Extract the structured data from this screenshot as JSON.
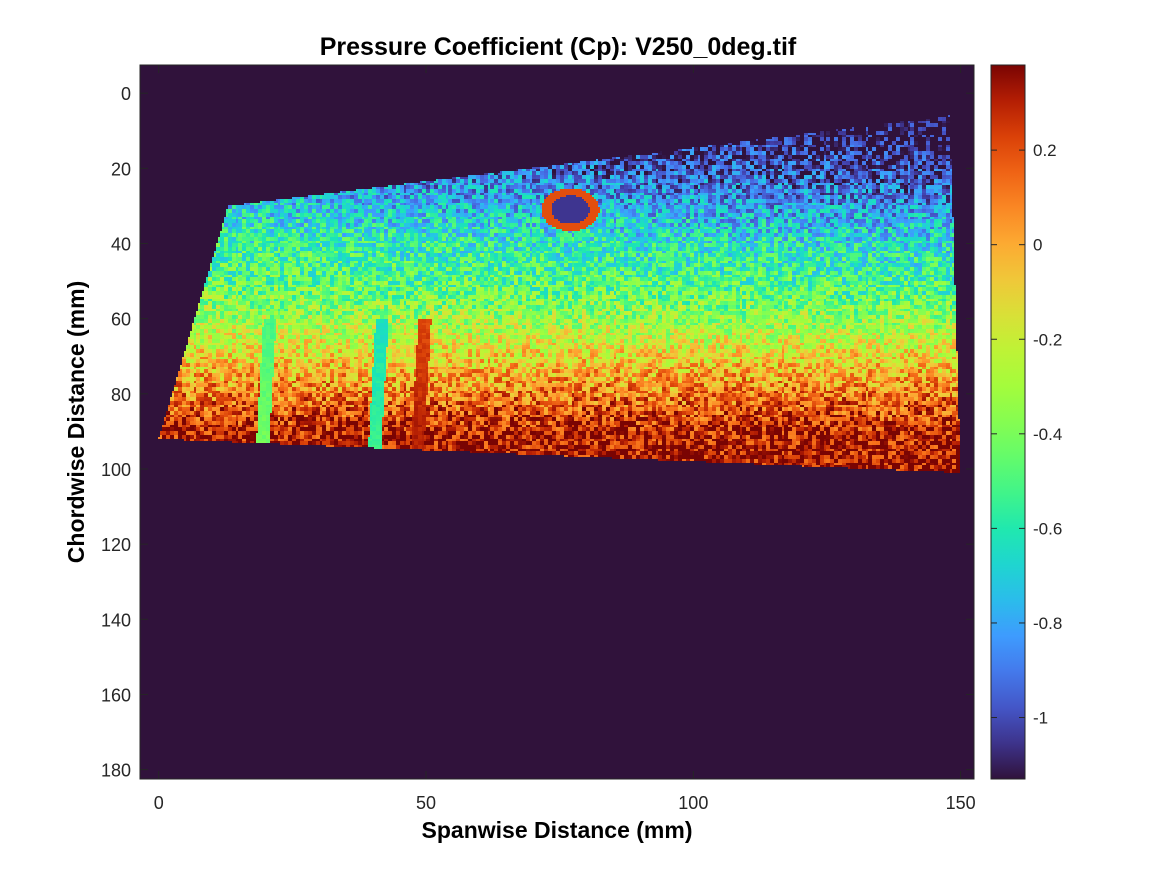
{
  "chart_data": {
    "type": "heatmap",
    "title": "Pressure Coefficient (Cp): V250_0deg.tif",
    "xlabel": "Spanwise Distance (mm)",
    "ylabel": "Chordwise Distance (mm)",
    "xlim": [
      -3.5,
      152.5
    ],
    "ylim": [
      -7.5,
      182.5
    ],
    "y_reversed": true,
    "xticks": [
      0,
      50,
      100,
      150
    ],
    "yticks": [
      0,
      20,
      40,
      60,
      80,
      100,
      120,
      140,
      160,
      180
    ],
    "colormap": "turbo",
    "clim": [
      -1.13,
      0.38
    ],
    "colorbar_ticks": [
      0.2,
      0,
      -0.2,
      -0.4,
      -0.6,
      -0.8,
      -1
    ],
    "background_value": -1.13,
    "grid": false,
    "colors": {
      "background": "#2e1438",
      "low": "#30123b",
      "high": "#7a0403"
    },
    "data_region": {
      "corners_mm": {
        "top_left": [
          13,
          30
        ],
        "top_right": [
          148,
          6
        ],
        "bottom_right": [
          150,
          101
        ],
        "bottom_left": [
          0,
          92
        ]
      },
      "approx_cp_by_chord_mm": [
        {
          "chord": 10,
          "cp": -0.95
        },
        {
          "chord": 20,
          "cp": -0.85
        },
        {
          "chord": 30,
          "cp": -0.7
        },
        {
          "chord": 40,
          "cp": -0.55
        },
        {
          "chord": 50,
          "cp": -0.45
        },
        {
          "chord": 60,
          "cp": -0.3
        },
        {
          "chord": 70,
          "cp": -0.1
        },
        {
          "chord": 80,
          "cp": 0.1
        },
        {
          "chord": 90,
          "cp": 0.3
        },
        {
          "chord": 100,
          "cp": 0.35
        }
      ],
      "features": [
        {
          "kind": "ring",
          "center_mm": [
            77,
            31
          ],
          "radius_mm": 4.5,
          "cp_ring": 0.2,
          "cp_inner": -1.05
        },
        {
          "kind": "streak",
          "x_mm": 22,
          "cp": -0.55
        },
        {
          "kind": "streak",
          "x_mm": 43,
          "cp": -0.7
        },
        {
          "kind": "streak",
          "x_mm": 51,
          "cp": 0.3
        }
      ]
    }
  }
}
